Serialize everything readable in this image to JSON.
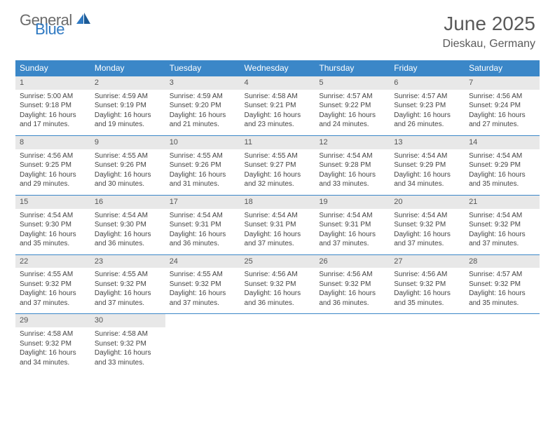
{
  "brand": {
    "word1": "General",
    "word2": "Blue"
  },
  "title": "June 2025",
  "location": "Dieskau, Germany",
  "colors": {
    "header_bg": "#3b87c8",
    "header_text": "#ffffff",
    "daynum_bg": "#e8e8e8",
    "border": "#3b87c8",
    "brand_gray": "#6b6b6b",
    "brand_blue": "#2f79c2",
    "text": "#444444"
  },
  "day_headers": [
    "Sunday",
    "Monday",
    "Tuesday",
    "Wednesday",
    "Thursday",
    "Friday",
    "Saturday"
  ],
  "weeks": [
    [
      {
        "n": "1",
        "sr": "Sunrise: 5:00 AM",
        "ss": "Sunset: 9:18 PM",
        "d1": "Daylight: 16 hours",
        "d2": "and 17 minutes."
      },
      {
        "n": "2",
        "sr": "Sunrise: 4:59 AM",
        "ss": "Sunset: 9:19 PM",
        "d1": "Daylight: 16 hours",
        "d2": "and 19 minutes."
      },
      {
        "n": "3",
        "sr": "Sunrise: 4:59 AM",
        "ss": "Sunset: 9:20 PM",
        "d1": "Daylight: 16 hours",
        "d2": "and 21 minutes."
      },
      {
        "n": "4",
        "sr": "Sunrise: 4:58 AM",
        "ss": "Sunset: 9:21 PM",
        "d1": "Daylight: 16 hours",
        "d2": "and 23 minutes."
      },
      {
        "n": "5",
        "sr": "Sunrise: 4:57 AM",
        "ss": "Sunset: 9:22 PM",
        "d1": "Daylight: 16 hours",
        "d2": "and 24 minutes."
      },
      {
        "n": "6",
        "sr": "Sunrise: 4:57 AM",
        "ss": "Sunset: 9:23 PM",
        "d1": "Daylight: 16 hours",
        "d2": "and 26 minutes."
      },
      {
        "n": "7",
        "sr": "Sunrise: 4:56 AM",
        "ss": "Sunset: 9:24 PM",
        "d1": "Daylight: 16 hours",
        "d2": "and 27 minutes."
      }
    ],
    [
      {
        "n": "8",
        "sr": "Sunrise: 4:56 AM",
        "ss": "Sunset: 9:25 PM",
        "d1": "Daylight: 16 hours",
        "d2": "and 29 minutes."
      },
      {
        "n": "9",
        "sr": "Sunrise: 4:55 AM",
        "ss": "Sunset: 9:26 PM",
        "d1": "Daylight: 16 hours",
        "d2": "and 30 minutes."
      },
      {
        "n": "10",
        "sr": "Sunrise: 4:55 AM",
        "ss": "Sunset: 9:26 PM",
        "d1": "Daylight: 16 hours",
        "d2": "and 31 minutes."
      },
      {
        "n": "11",
        "sr": "Sunrise: 4:55 AM",
        "ss": "Sunset: 9:27 PM",
        "d1": "Daylight: 16 hours",
        "d2": "and 32 minutes."
      },
      {
        "n": "12",
        "sr": "Sunrise: 4:54 AM",
        "ss": "Sunset: 9:28 PM",
        "d1": "Daylight: 16 hours",
        "d2": "and 33 minutes."
      },
      {
        "n": "13",
        "sr": "Sunrise: 4:54 AM",
        "ss": "Sunset: 9:29 PM",
        "d1": "Daylight: 16 hours",
        "d2": "and 34 minutes."
      },
      {
        "n": "14",
        "sr": "Sunrise: 4:54 AM",
        "ss": "Sunset: 9:29 PM",
        "d1": "Daylight: 16 hours",
        "d2": "and 35 minutes."
      }
    ],
    [
      {
        "n": "15",
        "sr": "Sunrise: 4:54 AM",
        "ss": "Sunset: 9:30 PM",
        "d1": "Daylight: 16 hours",
        "d2": "and 35 minutes."
      },
      {
        "n": "16",
        "sr": "Sunrise: 4:54 AM",
        "ss": "Sunset: 9:30 PM",
        "d1": "Daylight: 16 hours",
        "d2": "and 36 minutes."
      },
      {
        "n": "17",
        "sr": "Sunrise: 4:54 AM",
        "ss": "Sunset: 9:31 PM",
        "d1": "Daylight: 16 hours",
        "d2": "and 36 minutes."
      },
      {
        "n": "18",
        "sr": "Sunrise: 4:54 AM",
        "ss": "Sunset: 9:31 PM",
        "d1": "Daylight: 16 hours",
        "d2": "and 37 minutes."
      },
      {
        "n": "19",
        "sr": "Sunrise: 4:54 AM",
        "ss": "Sunset: 9:31 PM",
        "d1": "Daylight: 16 hours",
        "d2": "and 37 minutes."
      },
      {
        "n": "20",
        "sr": "Sunrise: 4:54 AM",
        "ss": "Sunset: 9:32 PM",
        "d1": "Daylight: 16 hours",
        "d2": "and 37 minutes."
      },
      {
        "n": "21",
        "sr": "Sunrise: 4:54 AM",
        "ss": "Sunset: 9:32 PM",
        "d1": "Daylight: 16 hours",
        "d2": "and 37 minutes."
      }
    ],
    [
      {
        "n": "22",
        "sr": "Sunrise: 4:55 AM",
        "ss": "Sunset: 9:32 PM",
        "d1": "Daylight: 16 hours",
        "d2": "and 37 minutes."
      },
      {
        "n": "23",
        "sr": "Sunrise: 4:55 AM",
        "ss": "Sunset: 9:32 PM",
        "d1": "Daylight: 16 hours",
        "d2": "and 37 minutes."
      },
      {
        "n": "24",
        "sr": "Sunrise: 4:55 AM",
        "ss": "Sunset: 9:32 PM",
        "d1": "Daylight: 16 hours",
        "d2": "and 37 minutes."
      },
      {
        "n": "25",
        "sr": "Sunrise: 4:56 AM",
        "ss": "Sunset: 9:32 PM",
        "d1": "Daylight: 16 hours",
        "d2": "and 36 minutes."
      },
      {
        "n": "26",
        "sr": "Sunrise: 4:56 AM",
        "ss": "Sunset: 9:32 PM",
        "d1": "Daylight: 16 hours",
        "d2": "and 36 minutes."
      },
      {
        "n": "27",
        "sr": "Sunrise: 4:56 AM",
        "ss": "Sunset: 9:32 PM",
        "d1": "Daylight: 16 hours",
        "d2": "and 35 minutes."
      },
      {
        "n": "28",
        "sr": "Sunrise: 4:57 AM",
        "ss": "Sunset: 9:32 PM",
        "d1": "Daylight: 16 hours",
        "d2": "and 35 minutes."
      }
    ],
    [
      {
        "n": "29",
        "sr": "Sunrise: 4:58 AM",
        "ss": "Sunset: 9:32 PM",
        "d1": "Daylight: 16 hours",
        "d2": "and 34 minutes."
      },
      {
        "n": "30",
        "sr": "Sunrise: 4:58 AM",
        "ss": "Sunset: 9:32 PM",
        "d1": "Daylight: 16 hours",
        "d2": "and 33 minutes."
      },
      {
        "empty": true
      },
      {
        "empty": true
      },
      {
        "empty": true
      },
      {
        "empty": true
      },
      {
        "empty": true
      }
    ]
  ]
}
